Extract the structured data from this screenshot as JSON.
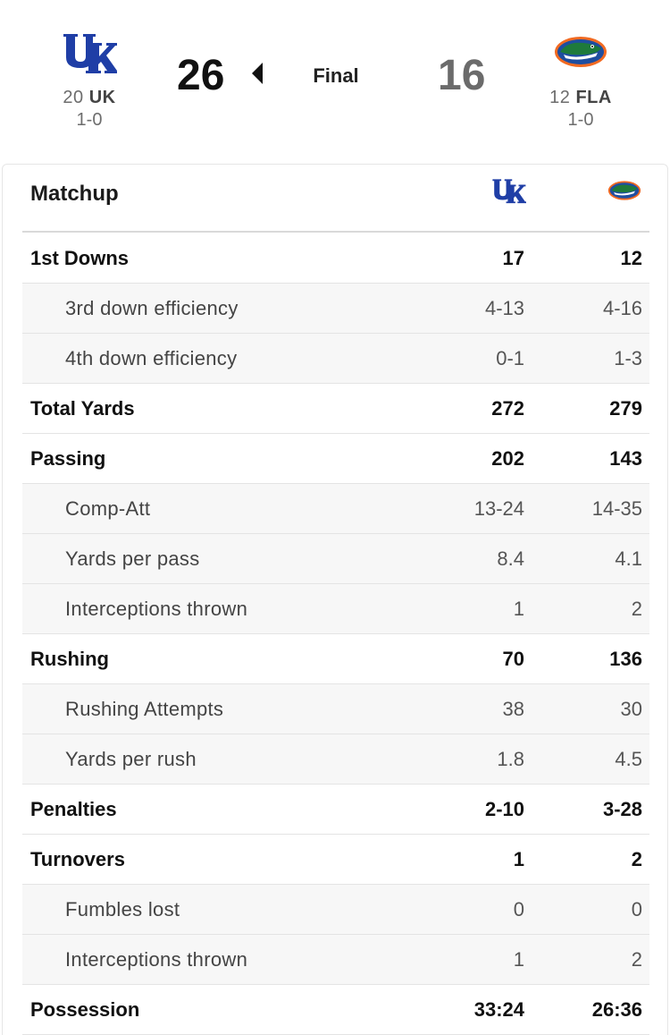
{
  "game": {
    "status": "Final",
    "home": {
      "rank": "20",
      "abbr": "UK",
      "record": "1-0",
      "score": "26",
      "logo_icon": "kentucky-uk-logo",
      "color": "#1f3ea6"
    },
    "away": {
      "rank": "12",
      "abbr": "FLA",
      "record": "1-0",
      "score": "16",
      "logo_icon": "florida-gator-logo",
      "color": "#f26a21"
    },
    "winner_icon": "winner-arrow-left-icon"
  },
  "matchup": {
    "title": "Matchup",
    "rows": [
      {
        "label": "1st Downs",
        "uk": "17",
        "fla": "12",
        "sub": false
      },
      {
        "label": "3rd down efficiency",
        "uk": "4-13",
        "fla": "4-16",
        "sub": true
      },
      {
        "label": "4th down efficiency",
        "uk": "0-1",
        "fla": "1-3",
        "sub": true
      },
      {
        "label": "Total Yards",
        "uk": "272",
        "fla": "279",
        "sub": false
      },
      {
        "label": "Passing",
        "uk": "202",
        "fla": "143",
        "sub": false
      },
      {
        "label": "Comp-Att",
        "uk": "13-24",
        "fla": "14-35",
        "sub": true
      },
      {
        "label": "Yards per pass",
        "uk": "8.4",
        "fla": "4.1",
        "sub": true
      },
      {
        "label": "Interceptions thrown",
        "uk": "1",
        "fla": "2",
        "sub": true
      },
      {
        "label": "Rushing",
        "uk": "70",
        "fla": "136",
        "sub": false
      },
      {
        "label": "Rushing Attempts",
        "uk": "38",
        "fla": "30",
        "sub": true
      },
      {
        "label": "Yards per rush",
        "uk": "1.8",
        "fla": "4.5",
        "sub": true
      },
      {
        "label": "Penalties",
        "uk": "2-10",
        "fla": "3-28",
        "sub": false
      },
      {
        "label": "Turnovers",
        "uk": "1",
        "fla": "2",
        "sub": false
      },
      {
        "label": "Fumbles lost",
        "uk": "0",
        "fla": "0",
        "sub": true
      },
      {
        "label": "Interceptions thrown",
        "uk": "1",
        "fla": "2",
        "sub": true
      },
      {
        "label": "Possession",
        "uk": "33:24",
        "fla": "26:36",
        "sub": false
      }
    ]
  }
}
